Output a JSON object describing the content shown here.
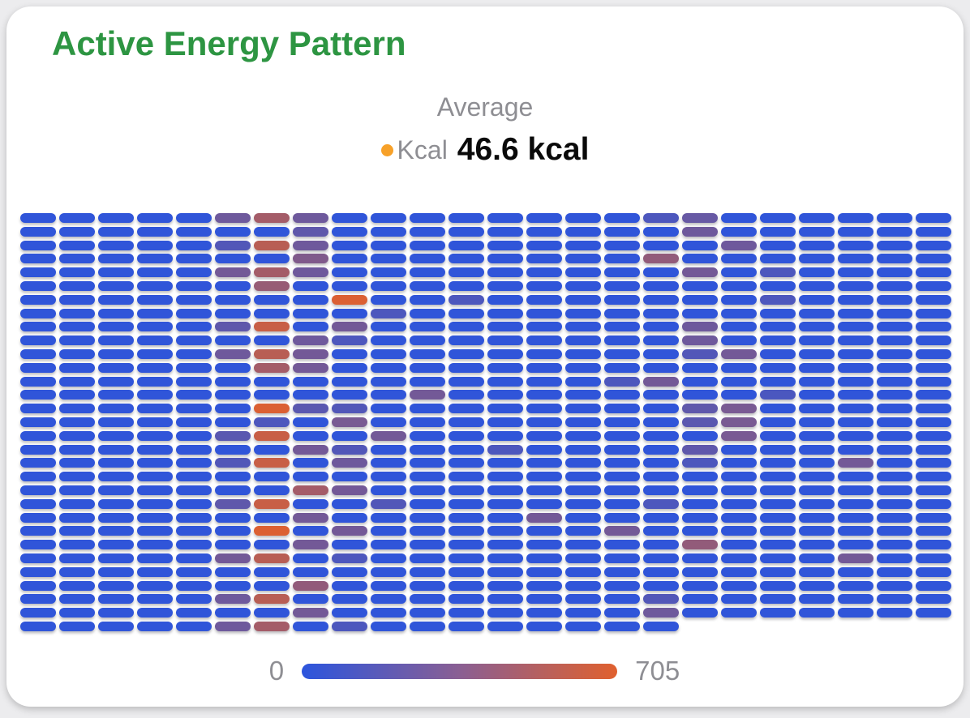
{
  "card": {
    "title": "Active Energy Pattern",
    "title_color": "#2d9542",
    "legend": {
      "header": "Average",
      "series_label": "Kcal",
      "dot_color": "#f7a129",
      "value": "46.6 kcal"
    },
    "scale": {
      "min": "0",
      "max": "705"
    }
  },
  "chart_data": {
    "type": "heatmap",
    "title": "Active Energy Pattern",
    "unit": "kcal",
    "average": 46.6,
    "rows": 31,
    "cols": 24,
    "last_row_cols": 17,
    "value_range": [
      0,
      705
    ],
    "base_value": 15,
    "color_low": "#2c55dd",
    "color_mid": "#8a5f93",
    "color_high": "#e0602e",
    "legend_position": "bottom",
    "highlights": [
      [
        0,
        5,
        260
      ],
      [
        0,
        6,
        470
      ],
      [
        0,
        7,
        260
      ],
      [
        0,
        16,
        130
      ],
      [
        0,
        17,
        230
      ],
      [
        1,
        7,
        200
      ],
      [
        1,
        17,
        260
      ],
      [
        2,
        5,
        150
      ],
      [
        2,
        6,
        550
      ],
      [
        2,
        7,
        260
      ],
      [
        2,
        18,
        260
      ],
      [
        3,
        7,
        330
      ],
      [
        3,
        16,
        400
      ],
      [
        4,
        5,
        280
      ],
      [
        4,
        6,
        470
      ],
      [
        4,
        7,
        260
      ],
      [
        4,
        17,
        280
      ],
      [
        4,
        19,
        130
      ],
      [
        5,
        6,
        420
      ],
      [
        6,
        8,
        685
      ],
      [
        6,
        11,
        130
      ],
      [
        6,
        19,
        130
      ],
      [
        7,
        9,
        130
      ],
      [
        8,
        5,
        200
      ],
      [
        8,
        6,
        610
      ],
      [
        8,
        8,
        280
      ],
      [
        8,
        17,
        260
      ],
      [
        9,
        7,
        260
      ],
      [
        9,
        8,
        130
      ],
      [
        9,
        17,
        260
      ],
      [
        10,
        5,
        260
      ],
      [
        10,
        6,
        550
      ],
      [
        10,
        7,
        280
      ],
      [
        10,
        17,
        150
      ],
      [
        10,
        18,
        280
      ],
      [
        11,
        6,
        470
      ],
      [
        11,
        7,
        280
      ],
      [
        12,
        15,
        130
      ],
      [
        12,
        16,
        280
      ],
      [
        13,
        10,
        280
      ],
      [
        13,
        19,
        120
      ],
      [
        14,
        6,
        685
      ],
      [
        14,
        7,
        180
      ],
      [
        14,
        8,
        150
      ],
      [
        14,
        17,
        200
      ],
      [
        14,
        18,
        300
      ],
      [
        15,
        6,
        130
      ],
      [
        15,
        8,
        300
      ],
      [
        15,
        17,
        180
      ],
      [
        15,
        18,
        300
      ],
      [
        16,
        5,
        180
      ],
      [
        16,
        6,
        610
      ],
      [
        16,
        9,
        280
      ],
      [
        16,
        18,
        300
      ],
      [
        17,
        7,
        280
      ],
      [
        17,
        8,
        150
      ],
      [
        17,
        12,
        130
      ],
      [
        17,
        17,
        200
      ],
      [
        18,
        5,
        150
      ],
      [
        18,
        6,
        610
      ],
      [
        18,
        8,
        260
      ],
      [
        18,
        17,
        130
      ],
      [
        18,
        21,
        280
      ],
      [
        20,
        7,
        470
      ],
      [
        20,
        8,
        280
      ],
      [
        21,
        5,
        200
      ],
      [
        21,
        6,
        610
      ],
      [
        21,
        9,
        150
      ],
      [
        21,
        16,
        130
      ],
      [
        22,
        7,
        280
      ],
      [
        22,
        13,
        280
      ],
      [
        23,
        6,
        690
      ],
      [
        23,
        8,
        280
      ],
      [
        23,
        15,
        280
      ],
      [
        24,
        7,
        280
      ],
      [
        24,
        17,
        400
      ],
      [
        25,
        5,
        280
      ],
      [
        25,
        6,
        550
      ],
      [
        25,
        8,
        130
      ],
      [
        25,
        21,
        280
      ],
      [
        27,
        7,
        400
      ],
      [
        28,
        5,
        260
      ],
      [
        28,
        6,
        550
      ],
      [
        28,
        16,
        150
      ],
      [
        29,
        7,
        280
      ],
      [
        29,
        16,
        260
      ],
      [
        30,
        5,
        260
      ],
      [
        30,
        6,
        470
      ],
      [
        30,
        8,
        130
      ]
    ]
  }
}
